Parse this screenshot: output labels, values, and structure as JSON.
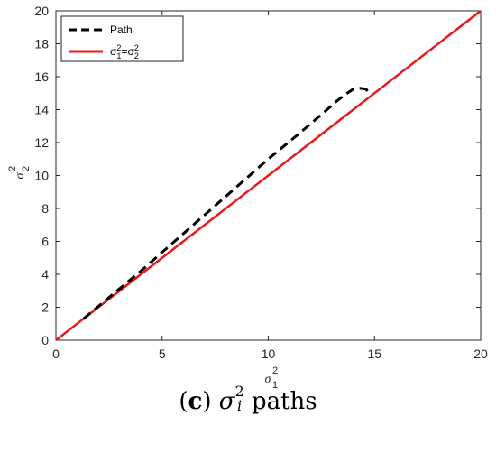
{
  "chart_data": {
    "type": "line",
    "xlim": [
      0,
      20
    ],
    "ylim": [
      0,
      20
    ],
    "xticks": [
      "0",
      "5",
      "10",
      "15",
      "20"
    ],
    "yticks": [
      "0",
      "2",
      "4",
      "6",
      "8",
      "10",
      "12",
      "14",
      "16",
      "18",
      "20"
    ],
    "xlabel": "σ",
    "xlabel_sup": "2",
    "xlabel_sub": "1",
    "ylabel": "σ",
    "ylabel_sup": "2",
    "ylabel_sub": "2",
    "grid": false,
    "legend_position": "top-left",
    "series": [
      {
        "name": "Path",
        "style": "dashed",
        "color": "#000000",
        "x": [
          1.3,
          2.5,
          4.0,
          5.5,
          7.0,
          8.5,
          10.0,
          11.5,
          12.5,
          13.2,
          13.6,
          14.0,
          14.3,
          14.6,
          14.8
        ],
        "y": [
          1.3,
          2.6,
          4.2,
          5.9,
          7.6,
          9.3,
          11.0,
          12.6,
          13.7,
          14.5,
          14.9,
          15.25,
          15.3,
          15.25,
          14.9
        ]
      },
      {
        "name_main": "σ",
        "name_sup1": "2",
        "name_sub1": "1",
        "name_eq": "=σ",
        "name_sup2": "2",
        "name_sub2": "2",
        "style": "solid",
        "color": "#e8191c",
        "x": [
          0,
          20
        ],
        "y": [
          0,
          20
        ]
      }
    ]
  },
  "caption": {
    "label": "c",
    "symbol": "σ",
    "sup": "2",
    "sub": "i",
    "text": "paths"
  }
}
